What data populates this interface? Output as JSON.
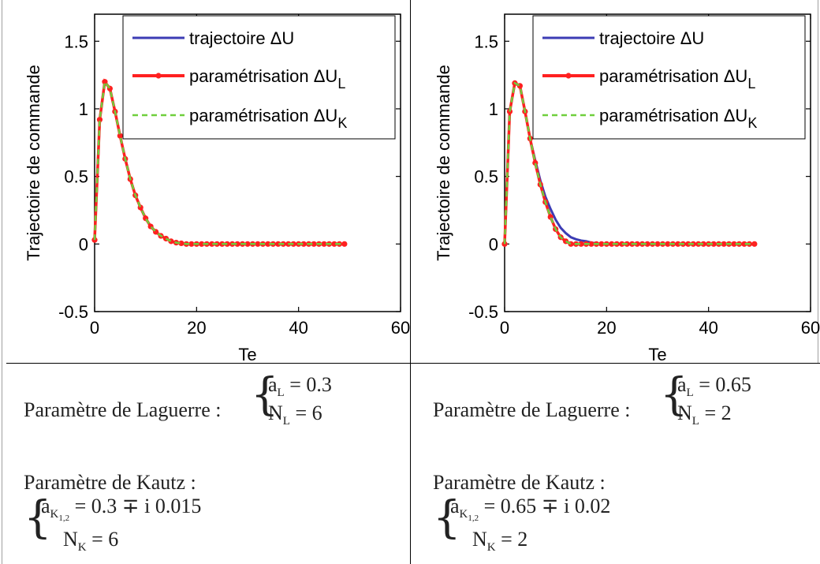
{
  "panels": [
    {
      "id": "left",
      "ylabel": "Trajectoire de commande",
      "xlabel": "Te",
      "legend": [
        {
          "text": "trajectoire ΔU",
          "color": "#3c3cb4",
          "style": "solid"
        },
        {
          "text": "paramétrisation ΔU",
          "sub": "L",
          "color": "#ff2020",
          "style": "marker"
        },
        {
          "text": "paramétrisation ΔU",
          "sub": "K",
          "color": "#6fcf3c",
          "style": "dashed"
        }
      ],
      "laguerre_label": "Paramètre de Laguerre :",
      "laguerre_a_lhs": "a",
      "laguerre_a_sub": "L",
      "laguerre_a_val": "= 0.3",
      "laguerre_n_lhs": "N",
      "laguerre_n_sub": "L",
      "laguerre_n_val": "= 6",
      "kautz_label": "Paramètre de Kautz :",
      "kautz_a_lhs": "a",
      "kautz_a_sub": "K",
      "kautz_a_subsub": "1,2",
      "kautz_a_val": "= 0.3 ∓ i 0.015",
      "kautz_n_lhs": "N",
      "kautz_n_sub": "K",
      "kautz_n_val": "= 6"
    },
    {
      "id": "right",
      "ylabel": "Trajectoire de commande",
      "xlabel": "Te",
      "legend": [
        {
          "text": "trajectoire ΔU",
          "color": "#3c3cb4",
          "style": "solid"
        },
        {
          "text": "paramétrisation ΔU",
          "sub": "L",
          "color": "#ff2020",
          "style": "marker"
        },
        {
          "text": "paramétrisation ΔU",
          "sub": "K",
          "color": "#6fcf3c",
          "style": "dashed"
        }
      ],
      "laguerre_label": "Paramètre de Laguerre :",
      "laguerre_a_lhs": "a",
      "laguerre_a_sub": "L",
      "laguerre_a_val": "= 0.65",
      "laguerre_n_lhs": "N",
      "laguerre_n_sub": "L",
      "laguerre_n_val": "= 2",
      "kautz_label": "Paramètre de Kautz :",
      "kautz_a_lhs": "a",
      "kautz_a_sub": "K",
      "kautz_a_subsub": "1,2",
      "kautz_a_val": "= 0.65 ∓ i 0.02",
      "kautz_n_lhs": "N",
      "kautz_n_sub": "K",
      "kautz_n_val": "= 2"
    }
  ],
  "chart_data": [
    {
      "type": "line",
      "xlabel": "Te",
      "ylabel": "Trajectoire de commande",
      "xlim": [
        0,
        60
      ],
      "ylim": [
        -0.5,
        1.7
      ],
      "xticks": [
        0,
        20,
        40,
        60
      ],
      "yticks": [
        -0.5,
        0,
        0.5,
        1,
        1.5
      ],
      "legend_position": "top-right",
      "x": [
        0,
        1,
        2,
        3,
        4,
        5,
        6,
        7,
        8,
        9,
        10,
        11,
        12,
        13,
        14,
        15,
        16,
        17,
        18,
        19,
        20,
        21,
        22,
        23,
        24,
        25,
        26,
        27,
        28,
        29,
        30,
        31,
        32,
        33,
        34,
        35,
        36,
        37,
        38,
        39,
        40,
        41,
        42,
        43,
        44,
        45,
        46,
        47,
        48,
        49
      ],
      "series": [
        {
          "name": "trajectoire ΔU",
          "values": [
            0.03,
            0.92,
            1.2,
            1.15,
            0.98,
            0.8,
            0.63,
            0.48,
            0.36,
            0.27,
            0.19,
            0.13,
            0.09,
            0.06,
            0.04,
            0.02,
            0.01,
            0.005,
            0,
            0,
            0,
            0,
            0,
            0,
            0,
            0,
            0,
            0,
            0,
            0,
            0,
            0,
            0,
            0,
            0,
            0,
            0,
            0,
            0,
            0,
            0,
            0,
            0,
            0,
            0,
            0,
            0,
            0,
            0,
            0
          ]
        },
        {
          "name": "paramétrisation ΔU_L",
          "values": [
            0.03,
            0.92,
            1.2,
            1.15,
            0.98,
            0.8,
            0.63,
            0.48,
            0.36,
            0.27,
            0.19,
            0.13,
            0.09,
            0.06,
            0.04,
            0.02,
            0.01,
            0.005,
            0,
            0,
            0,
            0,
            0,
            0,
            0,
            0,
            0,
            0,
            0,
            0,
            0,
            0,
            0,
            0,
            0,
            0,
            0,
            0,
            0,
            0,
            0,
            0,
            0,
            0,
            0,
            0,
            0,
            0,
            0,
            0
          ]
        },
        {
          "name": "paramétrisation ΔU_K",
          "values": [
            0.03,
            0.92,
            1.2,
            1.15,
            0.98,
            0.8,
            0.63,
            0.48,
            0.36,
            0.27,
            0.19,
            0.13,
            0.09,
            0.06,
            0.04,
            0.02,
            0.01,
            0.005,
            0,
            0,
            0,
            0,
            0,
            0,
            0,
            0,
            0,
            0,
            0,
            0,
            0,
            0,
            0,
            0,
            0,
            0,
            0,
            0,
            0,
            0,
            0,
            0,
            0,
            0,
            0,
            0,
            0,
            0,
            0,
            0
          ]
        }
      ]
    },
    {
      "type": "line",
      "xlabel": "Te",
      "ylabel": "Trajectoire de commande",
      "xlim": [
        0,
        60
      ],
      "ylim": [
        -0.5,
        1.7
      ],
      "xticks": [
        0,
        20,
        40,
        60
      ],
      "yticks": [
        -0.5,
        0,
        0.5,
        1,
        1.5
      ],
      "legend_position": "top-right",
      "x": [
        0,
        1,
        2,
        3,
        4,
        5,
        6,
        7,
        8,
        9,
        10,
        11,
        12,
        13,
        14,
        15,
        16,
        17,
        18,
        19,
        20,
        21,
        22,
        23,
        24,
        25,
        26,
        27,
        28,
        29,
        30,
        31,
        32,
        33,
        34,
        35,
        36,
        37,
        38,
        39,
        40,
        41,
        42,
        43,
        44,
        45,
        46,
        47,
        48,
        49
      ],
      "series": [
        {
          "name": "trajectoire ΔU",
          "values": [
            0,
            0.98,
            1.19,
            1.17,
            0.98,
            0.78,
            0.62,
            0.47,
            0.35,
            0.26,
            0.18,
            0.12,
            0.08,
            0.05,
            0.035,
            0.025,
            0.02,
            0.01,
            0.005,
            0,
            0,
            0,
            0,
            0,
            0,
            0,
            0,
            0,
            0,
            0,
            0,
            0,
            0,
            0,
            0,
            0,
            0,
            0,
            0,
            0,
            0,
            0,
            0,
            0,
            0,
            0,
            0,
            0,
            0,
            0
          ]
        },
        {
          "name": "paramétrisation ΔU_L",
          "values": [
            0,
            0.98,
            1.19,
            1.17,
            0.98,
            0.78,
            0.6,
            0.44,
            0.31,
            0.2,
            0.11,
            0.05,
            0.02,
            0,
            0,
            0,
            0,
            0,
            0,
            0,
            0,
            0,
            0,
            0,
            0,
            0,
            0,
            0,
            0,
            0,
            0,
            0,
            0,
            0,
            0,
            0,
            0,
            0,
            0,
            0,
            0,
            0,
            0,
            0,
            0,
            0,
            0,
            0,
            0,
            0
          ]
        },
        {
          "name": "paramétrisation ΔU_K",
          "values": [
            0,
            0.98,
            1.19,
            1.17,
            0.98,
            0.78,
            0.6,
            0.44,
            0.31,
            0.2,
            0.11,
            0.05,
            0.02,
            0,
            0,
            0,
            0,
            0,
            0,
            0,
            0,
            0,
            0,
            0,
            0,
            0,
            0,
            0,
            0,
            0,
            0,
            0,
            0,
            0,
            0,
            0,
            0,
            0,
            0,
            0,
            0,
            0,
            0,
            0,
            0,
            0,
            0,
            0,
            0,
            0
          ]
        }
      ]
    }
  ]
}
